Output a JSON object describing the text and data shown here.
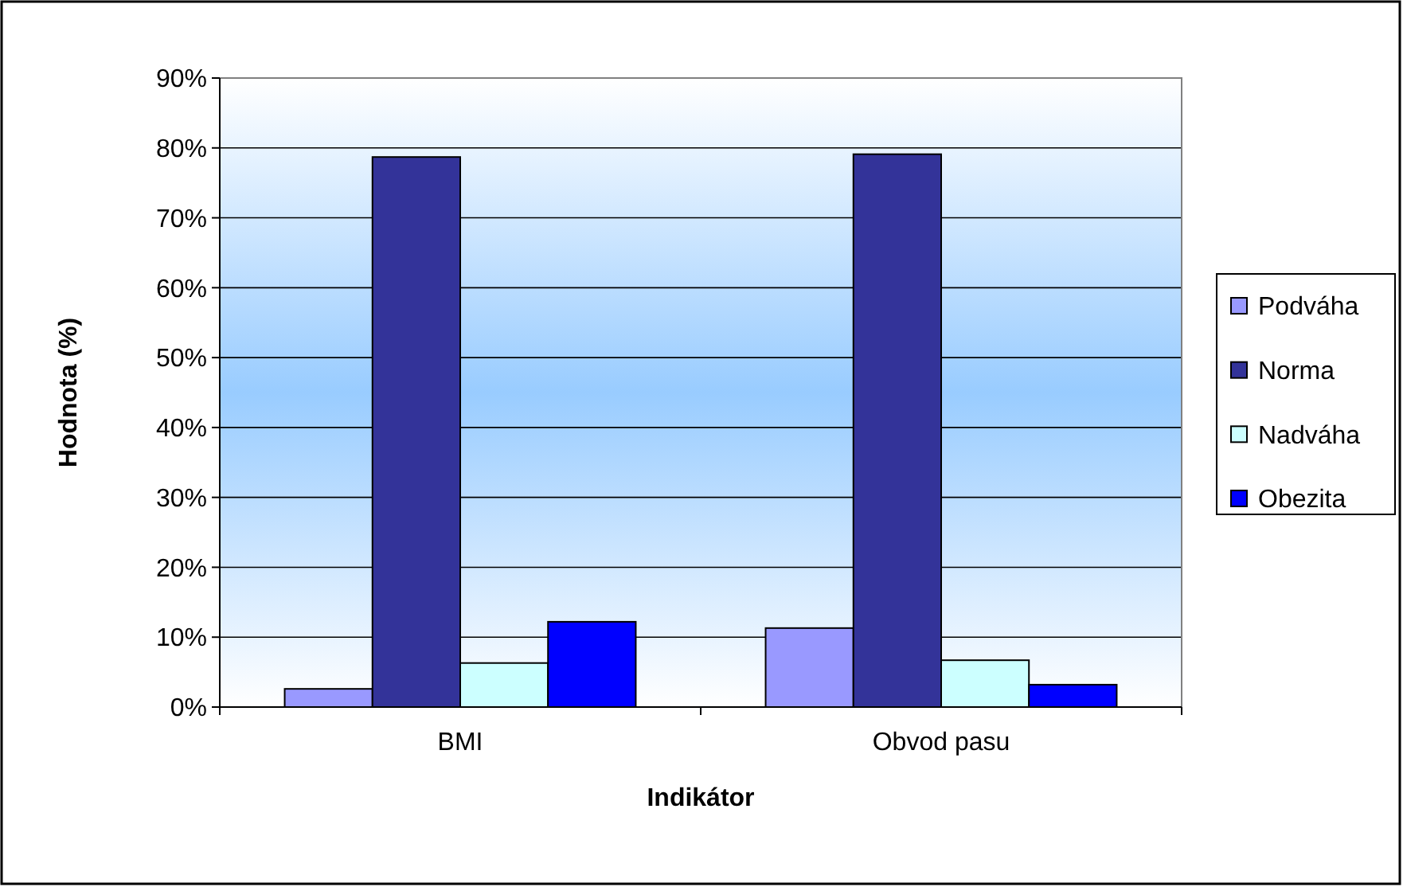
{
  "chart_data": {
    "type": "bar",
    "xlabel": "Indikátor",
    "ylabel": "Hodnota (%)",
    "categories": [
      "BMI",
      "Obvod pasu"
    ],
    "series": [
      {
        "name": "Podváha",
        "color": "#9999ff",
        "values": [
          2.6,
          11.3
        ]
      },
      {
        "name": "Norma",
        "color": "#333399",
        "values": [
          78.7,
          79.1
        ]
      },
      {
        "name": "Nadváha",
        "color": "#ccffff",
        "values": [
          6.3,
          6.7
        ]
      },
      {
        "name": "Obezita",
        "color": "#0000ff",
        "values": [
          12.2,
          3.2
        ]
      }
    ],
    "ylim": [
      0,
      90
    ],
    "yticks": [
      {
        "value": 0,
        "label": "0%"
      },
      {
        "value": 10,
        "label": "10%"
      },
      {
        "value": 20,
        "label": "20%"
      },
      {
        "value": 30,
        "label": "30%"
      },
      {
        "value": 40,
        "label": "40%"
      },
      {
        "value": 50,
        "label": "50%"
      },
      {
        "value": 60,
        "label": "60%"
      },
      {
        "value": 70,
        "label": "70%"
      },
      {
        "value": 80,
        "label": "80%"
      },
      {
        "value": 90,
        "label": "90%"
      }
    ],
    "grid": "y",
    "legend": "right"
  }
}
